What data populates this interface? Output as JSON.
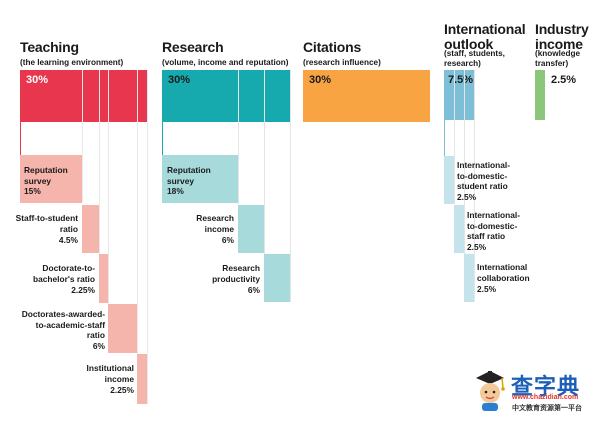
{
  "teaching": {
    "title": "Teaching",
    "subtitle": "(the learning environment)",
    "weight": "30%",
    "items": [
      {
        "label": "Reputation\nsurvey",
        "weight": "15%"
      },
      {
        "label": "Staff-to-student\nratio",
        "weight": "4.5%"
      },
      {
        "label": "Doctorate-to-\nbachelor's ratio",
        "weight": "2.25%"
      },
      {
        "label": "Doctorates-awarded-\nto-academic-staff\nratio",
        "weight": "6%"
      },
      {
        "label": "Institutional\nincome",
        "weight": "2.25%"
      }
    ]
  },
  "research": {
    "title": "Research",
    "subtitle": "(volume, income and reputation)",
    "weight": "30%",
    "items": [
      {
        "label": "Reputation\nsurvey",
        "weight": "18%"
      },
      {
        "label": "Research\nincome",
        "weight": "6%"
      },
      {
        "label": "Research\nproductivity",
        "weight": "6%"
      }
    ]
  },
  "citations": {
    "title": "Citations",
    "subtitle": "(research influence)",
    "weight": "30%"
  },
  "international": {
    "title": "International\noutlook",
    "subtitle": "(staff, students,\nresearch)",
    "weight": "7.5%",
    "items": [
      {
        "label": "International-\nto-domestic-\nstudent ratio",
        "weight": "2.5%"
      },
      {
        "label": "International-\nto-domestic-\nstaff ratio",
        "weight": "2.5%"
      },
      {
        "label": "International\ncollaboration",
        "weight": "2.5%"
      }
    ]
  },
  "industry": {
    "title": "Industry\nincome",
    "subtitle": "(knowledge\ntransfer)",
    "weight": "2.5%"
  },
  "watermark": {
    "brand": "查字典",
    "url": "www.chazidian.com",
    "tagline": "中文教育资源第一平台"
  },
  "colors": {
    "teaching": "#e8364f",
    "teaching_light": "#f5b4ac",
    "research": "#16a9ad",
    "research_light": "#a7dbdb",
    "citations": "#f8a443",
    "international": "#7cbfd6",
    "international_light": "#c4e3ea",
    "industry": "#8cc67b"
  }
}
